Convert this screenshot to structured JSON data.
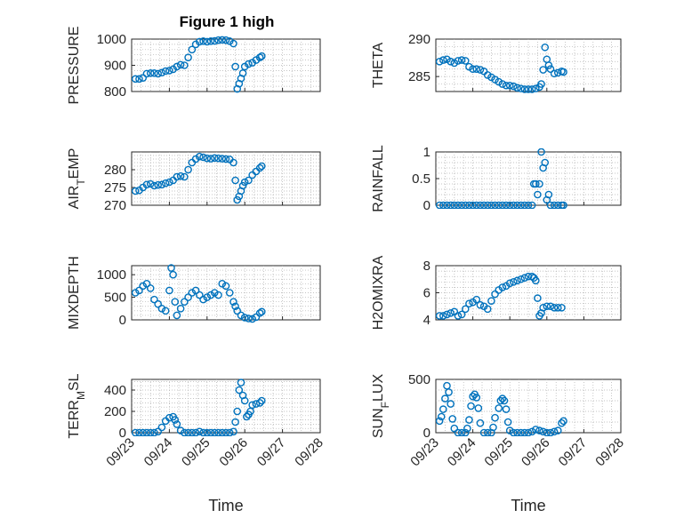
{
  "figure_title": "Figure 1 high",
  "chart_data": [
    {
      "id": "pressure",
      "type": "scatter",
      "title": "Figure 1 high",
      "ylabel": "PRESSURE",
      "ylabel_sub": "",
      "xlabel": "",
      "ylim": [
        800,
        1000
      ],
      "yticks": [
        800,
        900,
        1000
      ],
      "xlim": [
        0,
        5
      ],
      "xticks": [
        0,
        1,
        2,
        3,
        4,
        5
      ],
      "xticklabels": [],
      "points": [
        [
          0.1,
          848
        ],
        [
          0.2,
          848
        ],
        [
          0.3,
          852
        ],
        [
          0.4,
          868
        ],
        [
          0.5,
          870
        ],
        [
          0.6,
          870
        ],
        [
          0.7,
          868
        ],
        [
          0.8,
          872
        ],
        [
          0.9,
          878
        ],
        [
          1.0,
          880
        ],
        [
          1.1,
          885
        ],
        [
          1.2,
          895
        ],
        [
          1.3,
          902
        ],
        [
          1.4,
          900
        ],
        [
          1.5,
          930
        ],
        [
          1.6,
          960
        ],
        [
          1.7,
          980
        ],
        [
          1.8,
          990
        ],
        [
          1.9,
          992
        ],
        [
          2.0,
          990
        ],
        [
          2.1,
          992
        ],
        [
          2.2,
          993
        ],
        [
          2.3,
          996
        ],
        [
          2.4,
          997
        ],
        [
          2.5,
          996
        ],
        [
          2.6,
          992
        ],
        [
          2.7,
          983
        ],
        [
          2.75,
          895
        ],
        [
          2.8,
          810
        ],
        [
          2.85,
          830
        ],
        [
          2.9,
          850
        ],
        [
          2.95,
          870
        ],
        [
          3.0,
          895
        ],
        [
          3.1,
          905
        ],
        [
          3.2,
          910
        ],
        [
          3.3,
          920
        ],
        [
          3.4,
          930
        ],
        [
          3.45,
          935
        ]
      ]
    },
    {
      "id": "theta",
      "type": "scatter",
      "title": "",
      "ylabel": "THETA",
      "ylabel_sub": "",
      "xlabel": "",
      "ylim": [
        283,
        290
      ],
      "yticks": [
        285,
        290
      ],
      "xlim": [
        0,
        5
      ],
      "xticks": [
        0,
        1,
        2,
        3,
        4,
        5
      ],
      "xticklabels": [],
      "points": [
        [
          0.1,
          287.0
        ],
        [
          0.2,
          287.2
        ],
        [
          0.3,
          287.3
        ],
        [
          0.4,
          287.0
        ],
        [
          0.5,
          286.8
        ],
        [
          0.6,
          287.1
        ],
        [
          0.7,
          287.2
        ],
        [
          0.8,
          287.1
        ],
        [
          0.9,
          286.3
        ],
        [
          1.0,
          286.0
        ],
        [
          1.1,
          286.0
        ],
        [
          1.2,
          285.9
        ],
        [
          1.3,
          285.7
        ],
        [
          1.4,
          285.2
        ],
        [
          1.5,
          284.9
        ],
        [
          1.6,
          284.6
        ],
        [
          1.7,
          284.3
        ],
        [
          1.8,
          284.0
        ],
        [
          1.9,
          283.8
        ],
        [
          2.0,
          283.8
        ],
        [
          2.1,
          283.7
        ],
        [
          2.2,
          283.5
        ],
        [
          2.3,
          283.4
        ],
        [
          2.4,
          283.3
        ],
        [
          2.5,
          283.3
        ],
        [
          2.6,
          283.3
        ],
        [
          2.7,
          283.4
        ],
        [
          2.8,
          283.6
        ],
        [
          2.85,
          284.0
        ],
        [
          2.9,
          285.9
        ],
        [
          2.95,
          288.9
        ],
        [
          3.0,
          287.3
        ],
        [
          3.05,
          286.5
        ],
        [
          3.1,
          286.0
        ],
        [
          3.2,
          285.4
        ],
        [
          3.3,
          285.5
        ],
        [
          3.4,
          285.7
        ],
        [
          3.45,
          285.6
        ]
      ]
    },
    {
      "id": "air_temp",
      "type": "scatter",
      "title": "",
      "ylabel": "AIR",
      "ylabel_sub": "T",
      "ylabel_tail": "EMP",
      "xlabel": "",
      "ylim": [
        270,
        285
      ],
      "yticks": [
        270,
        275,
        280
      ],
      "xlim": [
        0,
        5
      ],
      "xticks": [
        0,
        1,
        2,
        3,
        4,
        5
      ],
      "xticklabels": [],
      "points": [
        [
          0.1,
          274.0
        ],
        [
          0.2,
          274.2
        ],
        [
          0.3,
          275.0
        ],
        [
          0.4,
          275.8
        ],
        [
          0.5,
          276.0
        ],
        [
          0.6,
          275.5
        ],
        [
          0.7,
          275.7
        ],
        [
          0.8,
          275.8
        ],
        [
          0.9,
          276.2
        ],
        [
          1.0,
          276.5
        ],
        [
          1.1,
          277.0
        ],
        [
          1.2,
          278.0
        ],
        [
          1.3,
          278.2
        ],
        [
          1.4,
          278.0
        ],
        [
          1.5,
          280.0
        ],
        [
          1.6,
          282.0
        ],
        [
          1.7,
          283.0
        ],
        [
          1.8,
          283.7
        ],
        [
          1.9,
          283.5
        ],
        [
          2.0,
          283.2
        ],
        [
          2.1,
          283.1
        ],
        [
          2.2,
          283.3
        ],
        [
          2.3,
          283.2
        ],
        [
          2.4,
          283.1
        ],
        [
          2.5,
          283.0
        ],
        [
          2.6,
          282.9
        ],
        [
          2.7,
          282.0
        ],
        [
          2.75,
          277.0
        ],
        [
          2.8,
          271.5
        ],
        [
          2.85,
          272.5
        ],
        [
          2.9,
          274.0
        ],
        [
          2.95,
          275.5
        ],
        [
          3.0,
          276.5
        ],
        [
          3.1,
          277.0
        ],
        [
          3.2,
          278.5
        ],
        [
          3.3,
          279.5
        ],
        [
          3.4,
          280.5
        ],
        [
          3.45,
          281.0
        ]
      ]
    },
    {
      "id": "rainfall",
      "type": "scatter",
      "title": "",
      "ylabel": "RAINFALL",
      "ylabel_sub": "",
      "xlabel": "",
      "ylim": [
        0,
        1
      ],
      "yticks": [
        0,
        0.5,
        1
      ],
      "xlim": [
        0,
        5
      ],
      "xticks": [
        0,
        1,
        2,
        3,
        4,
        5
      ],
      "xticklabels": [],
      "points": [
        [
          0.1,
          0
        ],
        [
          0.2,
          0
        ],
        [
          0.3,
          0
        ],
        [
          0.4,
          0
        ],
        [
          0.5,
          0
        ],
        [
          0.6,
          0
        ],
        [
          0.7,
          0
        ],
        [
          0.8,
          0
        ],
        [
          0.9,
          0
        ],
        [
          1.0,
          0
        ],
        [
          1.1,
          0
        ],
        [
          1.2,
          0
        ],
        [
          1.3,
          0
        ],
        [
          1.4,
          0
        ],
        [
          1.5,
          0
        ],
        [
          1.6,
          0
        ],
        [
          1.7,
          0
        ],
        [
          1.8,
          0
        ],
        [
          1.9,
          0
        ],
        [
          2.0,
          0
        ],
        [
          2.1,
          0
        ],
        [
          2.2,
          0
        ],
        [
          2.3,
          0
        ],
        [
          2.4,
          0
        ],
        [
          2.5,
          0
        ],
        [
          2.6,
          0
        ],
        [
          2.65,
          0.4
        ],
        [
          2.7,
          0.4
        ],
        [
          2.75,
          0.2
        ],
        [
          2.8,
          0.4
        ],
        [
          2.85,
          1.0
        ],
        [
          2.9,
          0.7
        ],
        [
          2.95,
          0.8
        ],
        [
          3.0,
          0.1
        ],
        [
          3.05,
          0.2
        ],
        [
          3.1,
          0
        ],
        [
          3.2,
          0
        ],
        [
          3.3,
          0
        ],
        [
          3.4,
          0
        ],
        [
          3.45,
          0
        ]
      ]
    },
    {
      "id": "mixdepth",
      "type": "scatter",
      "title": "",
      "ylabel": "MIXDEPTH",
      "ylabel_sub": "",
      "xlabel": "",
      "ylim": [
        0,
        1200
      ],
      "yticks": [
        0,
        500,
        1000
      ],
      "xlim": [
        0,
        5
      ],
      "xticks": [
        0,
        1,
        2,
        3,
        4,
        5
      ],
      "xticklabels": [],
      "points": [
        [
          0.1,
          600
        ],
        [
          0.2,
          650
        ],
        [
          0.3,
          750
        ],
        [
          0.4,
          800
        ],
        [
          0.5,
          700
        ],
        [
          0.6,
          450
        ],
        [
          0.7,
          350
        ],
        [
          0.8,
          250
        ],
        [
          0.9,
          200
        ],
        [
          1.0,
          650
        ],
        [
          1.05,
          1150
        ],
        [
          1.1,
          1000
        ],
        [
          1.15,
          400
        ],
        [
          1.2,
          100
        ],
        [
          1.3,
          250
        ],
        [
          1.4,
          400
        ],
        [
          1.5,
          500
        ],
        [
          1.6,
          600
        ],
        [
          1.7,
          650
        ],
        [
          1.8,
          550
        ],
        [
          1.9,
          450
        ],
        [
          2.0,
          500
        ],
        [
          2.1,
          550
        ],
        [
          2.2,
          600
        ],
        [
          2.3,
          550
        ],
        [
          2.4,
          800
        ],
        [
          2.5,
          750
        ],
        [
          2.6,
          600
        ],
        [
          2.7,
          400
        ],
        [
          2.75,
          300
        ],
        [
          2.8,
          200
        ],
        [
          2.9,
          100
        ],
        [
          3.0,
          50
        ],
        [
          3.1,
          30
        ],
        [
          3.2,
          20
        ],
        [
          3.3,
          60
        ],
        [
          3.4,
          150
        ],
        [
          3.45,
          180
        ]
      ]
    },
    {
      "id": "h2omixra",
      "type": "scatter",
      "title": "",
      "ylabel": "H2OMIXRA",
      "ylabel_sub": "",
      "xlabel": "",
      "ylim": [
        4,
        8
      ],
      "yticks": [
        4,
        6,
        8
      ],
      "xlim": [
        0,
        5
      ],
      "xticks": [
        0,
        1,
        2,
        3,
        4,
        5
      ],
      "xticklabels": [],
      "points": [
        [
          0.1,
          4.3
        ],
        [
          0.2,
          4.3
        ],
        [
          0.3,
          4.4
        ],
        [
          0.4,
          4.5
        ],
        [
          0.5,
          4.6
        ],
        [
          0.6,
          4.3
        ],
        [
          0.7,
          4.4
        ],
        [
          0.8,
          4.8
        ],
        [
          0.9,
          5.2
        ],
        [
          1.0,
          5.3
        ],
        [
          1.1,
          5.5
        ],
        [
          1.2,
          5.1
        ],
        [
          1.3,
          5.0
        ],
        [
          1.4,
          4.8
        ],
        [
          1.5,
          5.4
        ],
        [
          1.6,
          5.9
        ],
        [
          1.7,
          6.2
        ],
        [
          1.8,
          6.4
        ],
        [
          1.9,
          6.5
        ],
        [
          2.0,
          6.7
        ],
        [
          2.1,
          6.8
        ],
        [
          2.2,
          6.9
        ],
        [
          2.3,
          7.0
        ],
        [
          2.4,
          7.1
        ],
        [
          2.5,
          7.2
        ],
        [
          2.6,
          7.2
        ],
        [
          2.65,
          7.1
        ],
        [
          2.7,
          6.9
        ],
        [
          2.75,
          5.6
        ],
        [
          2.8,
          4.3
        ],
        [
          2.85,
          4.5
        ],
        [
          2.9,
          4.9
        ],
        [
          3.0,
          5.0
        ],
        [
          3.1,
          5.0
        ],
        [
          3.2,
          4.9
        ],
        [
          3.3,
          4.9
        ],
        [
          3.4,
          4.9
        ]
      ]
    },
    {
      "id": "terr_msl",
      "type": "scatter",
      "title": "",
      "ylabel": "TERR",
      "ylabel_sub": "M",
      "ylabel_tail": "SL",
      "xlabel": "Time",
      "ylim": [
        0,
        500
      ],
      "yticks": [
        0,
        200,
        400
      ],
      "xlim": [
        0,
        5
      ],
      "xticks": [
        0,
        1,
        2,
        3,
        4,
        5
      ],
      "xticklabels": [
        "09/23",
        "09/24",
        "09/25",
        "09/26",
        "09/27",
        "09/28"
      ],
      "points": [
        [
          0.1,
          0
        ],
        [
          0.2,
          0
        ],
        [
          0.3,
          0
        ],
        [
          0.4,
          0
        ],
        [
          0.5,
          0
        ],
        [
          0.6,
          0
        ],
        [
          0.7,
          10
        ],
        [
          0.8,
          50
        ],
        [
          0.9,
          110
        ],
        [
          1.0,
          140
        ],
        [
          1.1,
          150
        ],
        [
          1.15,
          120
        ],
        [
          1.2,
          80
        ],
        [
          1.3,
          20
        ],
        [
          1.4,
          0
        ],
        [
          1.5,
          0
        ],
        [
          1.6,
          0
        ],
        [
          1.7,
          0
        ],
        [
          1.8,
          10
        ],
        [
          1.9,
          0
        ],
        [
          2.0,
          0
        ],
        [
          2.1,
          0
        ],
        [
          2.2,
          0
        ],
        [
          2.3,
          0
        ],
        [
          2.4,
          0
        ],
        [
          2.5,
          0
        ],
        [
          2.6,
          0
        ],
        [
          2.7,
          10
        ],
        [
          2.75,
          100
        ],
        [
          2.8,
          200
        ],
        [
          2.85,
          400
        ],
        [
          2.9,
          470
        ],
        [
          2.95,
          350
        ],
        [
          3.0,
          300
        ],
        [
          3.05,
          150
        ],
        [
          3.1,
          170
        ],
        [
          3.15,
          200
        ],
        [
          3.2,
          260
        ],
        [
          3.3,
          270
        ],
        [
          3.4,
          280
        ],
        [
          3.45,
          300
        ]
      ]
    },
    {
      "id": "sun_flux",
      "type": "scatter",
      "title": "",
      "ylabel": "SUN",
      "ylabel_sub": "F",
      "ylabel_tail": "LUX",
      "xlabel": "Time",
      "ylim": [
        0,
        500
      ],
      "yticks": [
        0,
        500
      ],
      "xlim": [
        0,
        5
      ],
      "xticks": [
        0,
        1,
        2,
        3,
        4,
        5
      ],
      "xticklabels": [
        "09/23",
        "09/24",
        "09/25",
        "09/26",
        "09/27",
        "09/28"
      ],
      "points": [
        [
          0.1,
          110
        ],
        [
          0.15,
          150
        ],
        [
          0.2,
          220
        ],
        [
          0.25,
          320
        ],
        [
          0.3,
          440
        ],
        [
          0.35,
          380
        ],
        [
          0.4,
          270
        ],
        [
          0.45,
          130
        ],
        [
          0.5,
          40
        ],
        [
          0.6,
          0
        ],
        [
          0.7,
          0
        ],
        [
          0.8,
          0
        ],
        [
          0.85,
          40
        ],
        [
          0.9,
          120
        ],
        [
          0.95,
          250
        ],
        [
          1.0,
          340
        ],
        [
          1.05,
          360
        ],
        [
          1.1,
          330
        ],
        [
          1.15,
          230
        ],
        [
          1.2,
          90
        ],
        [
          1.3,
          0
        ],
        [
          1.4,
          0
        ],
        [
          1.5,
          0
        ],
        [
          1.55,
          50
        ],
        [
          1.6,
          140
        ],
        [
          1.7,
          230
        ],
        [
          1.75,
          300
        ],
        [
          1.8,
          320
        ],
        [
          1.85,
          300
        ],
        [
          1.9,
          220
        ],
        [
          1.95,
          100
        ],
        [
          2.0,
          20
        ],
        [
          2.1,
          0
        ],
        [
          2.2,
          0
        ],
        [
          2.3,
          0
        ],
        [
          2.4,
          0
        ],
        [
          2.5,
          0
        ],
        [
          2.6,
          10
        ],
        [
          2.7,
          30
        ],
        [
          2.8,
          20
        ],
        [
          2.9,
          10
        ],
        [
          3.0,
          0
        ],
        [
          3.1,
          0
        ],
        [
          3.2,
          10
        ],
        [
          3.3,
          20
        ],
        [
          3.4,
          90
        ],
        [
          3.45,
          110
        ]
      ]
    }
  ]
}
